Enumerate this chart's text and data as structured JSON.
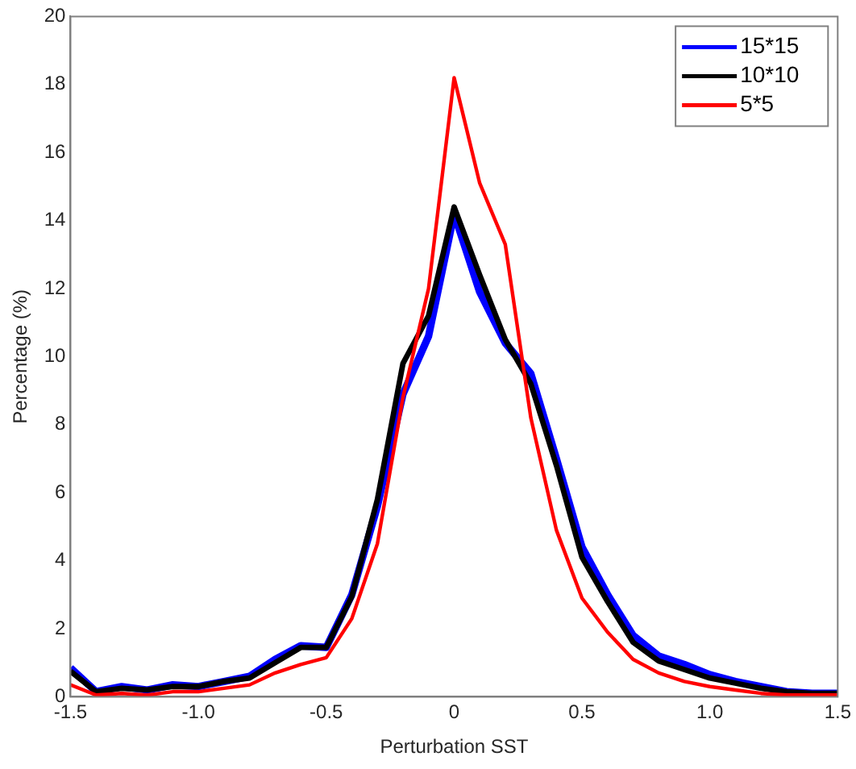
{
  "chart_data": {
    "type": "line",
    "xlabel": "Perturbation SST",
    "ylabel": "Percentage (%)",
    "x": [
      -1.5,
      -1.4,
      -1.3,
      -1.2,
      -1.1,
      -1.0,
      -0.9,
      -0.8,
      -0.7,
      -0.6,
      -0.5,
      -0.4,
      -0.3,
      -0.2,
      -0.1,
      0,
      0.1,
      0.2,
      0.3,
      0.4,
      0.5,
      0.6,
      0.7,
      0.8,
      0.9,
      1.0,
      1.1,
      1.2,
      1.3,
      1.4,
      1.5
    ],
    "series": [
      {
        "name": "15*15",
        "color": "#0000ff",
        "values": [
          0.85,
          0.15,
          0.3,
          0.2,
          0.35,
          0.3,
          0.45,
          0.6,
          1.1,
          1.5,
          1.45,
          3.0,
          5.6,
          8.9,
          10.6,
          14.2,
          11.9,
          10.4,
          9.5,
          7.0,
          4.4,
          3.0,
          1.8,
          1.2,
          0.95,
          0.65,
          0.45,
          0.3,
          0.15,
          0.1,
          0.1
        ]
      },
      {
        "name": "10*10",
        "color": "#000000",
        "values": [
          0.75,
          0.15,
          0.25,
          0.2,
          0.3,
          0.3,
          0.45,
          0.55,
          1.0,
          1.45,
          1.45,
          2.95,
          5.8,
          9.8,
          11.2,
          14.4,
          12.4,
          10.5,
          9.2,
          6.8,
          4.1,
          2.8,
          1.6,
          1.05,
          0.8,
          0.55,
          0.4,
          0.25,
          0.15,
          0.1,
          0.1
        ]
      },
      {
        "name": "5*5",
        "color": "#ff0000",
        "values": [
          0.35,
          0.05,
          0.1,
          0.05,
          0.15,
          0.15,
          0.25,
          0.35,
          0.7,
          0.95,
          1.15,
          2.3,
          4.5,
          8.8,
          12.0,
          18.2,
          15.1,
          13.3,
          8.2,
          4.9,
          2.9,
          1.9,
          1.1,
          0.7,
          0.45,
          0.3,
          0.2,
          0.1,
          0.05,
          0.05,
          0.05
        ]
      }
    ],
    "xlim": [
      -1.5,
      1.5
    ],
    "xticks": [
      -1.5,
      {
        "value": -1,
        "label": "-1.0"
      },
      -0.5,
      0,
      0.5,
      {
        "value": 1,
        "label": "1.0"
      },
      1.5
    ],
    "ylim": [
      0,
      20
    ],
    "yticks": [
      0,
      2,
      4,
      6,
      8,
      10,
      12,
      14,
      16,
      18,
      20
    ],
    "grid": false,
    "legend": "top right",
    "marker": "none",
    "line_style": "solid"
  }
}
